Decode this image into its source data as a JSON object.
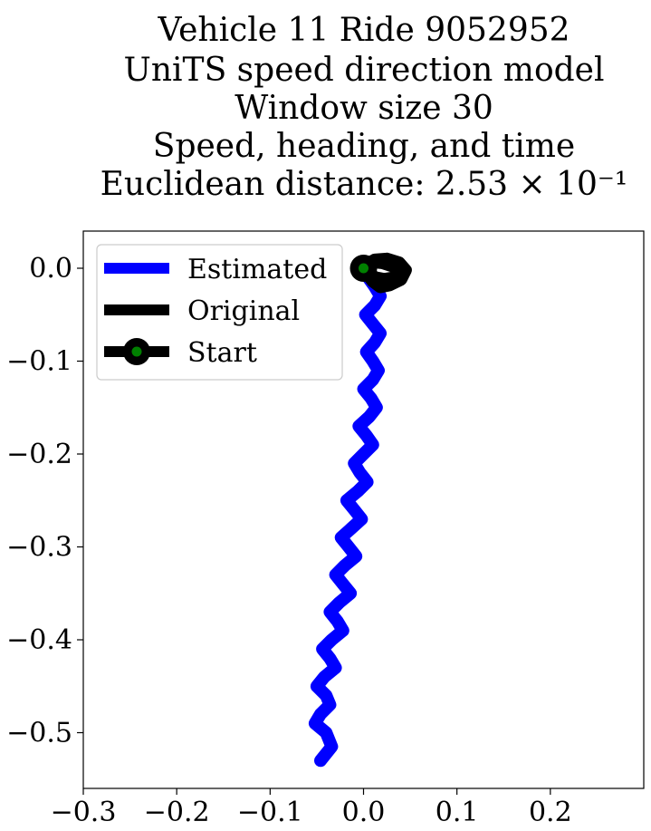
{
  "chart_data": {
    "type": "line",
    "title_lines": [
      "Vehicle 11 Ride 9052952",
      "UniTS speed direction model",
      "Window size 30",
      "Speed, heading, and time",
      "Euclidean distance: 2.53 × 10⁻¹"
    ],
    "xlabel": "",
    "ylabel": "",
    "xlim": [
      -0.3,
      0.3
    ],
    "ylim": [
      -0.56,
      0.04
    ],
    "xticks": [
      -0.3,
      -0.2,
      -0.1,
      0.0,
      0.1,
      0.2
    ],
    "xtick_labels": [
      "−0.3",
      "−0.2",
      "−0.1",
      "0.0",
      "0.1",
      "0.2"
    ],
    "yticks": [
      0.0,
      -0.1,
      -0.2,
      -0.3,
      -0.4,
      -0.5
    ],
    "ytick_labels": [
      "0.0",
      "−0.1",
      "−0.2",
      "−0.3",
      "−0.4",
      "−0.5"
    ],
    "grid": false,
    "legend_position": "upper-left",
    "legend": [
      {
        "label": "Estimated",
        "color": "#0000ff",
        "style": "line"
      },
      {
        "label": "Original",
        "color": "#000000",
        "style": "line"
      },
      {
        "label": "Start",
        "color": "#000000",
        "marker_color": "#008000",
        "style": "line-marker"
      }
    ],
    "series": [
      {
        "name": "Estimated",
        "color": "#0000ff",
        "x": [
          0.0,
          0.005,
          0.012,
          0.018,
          0.012,
          0.002,
          0.01,
          0.018,
          0.012,
          0.003,
          0.01,
          0.016,
          0.01,
          0.0,
          0.008,
          0.014,
          0.006,
          -0.005,
          0.003,
          0.01,
          0.0,
          -0.01,
          -0.004,
          0.004,
          -0.006,
          -0.018,
          -0.01,
          -0.002,
          -0.013,
          -0.024,
          -0.016,
          -0.008,
          -0.02,
          -0.03,
          -0.022,
          -0.014,
          -0.026,
          -0.036,
          -0.028,
          -0.022,
          -0.034,
          -0.044,
          -0.036,
          -0.03,
          -0.042,
          -0.05,
          -0.04,
          -0.036,
          -0.046,
          -0.052,
          -0.04,
          -0.034,
          -0.046
        ],
        "y": [
          0.0,
          -0.01,
          -0.02,
          -0.03,
          -0.04,
          -0.05,
          -0.06,
          -0.07,
          -0.08,
          -0.09,
          -0.1,
          -0.11,
          -0.12,
          -0.13,
          -0.14,
          -0.15,
          -0.16,
          -0.17,
          -0.18,
          -0.19,
          -0.2,
          -0.21,
          -0.22,
          -0.23,
          -0.24,
          -0.25,
          -0.26,
          -0.27,
          -0.28,
          -0.29,
          -0.3,
          -0.31,
          -0.32,
          -0.33,
          -0.34,
          -0.35,
          -0.36,
          -0.37,
          -0.38,
          -0.39,
          -0.4,
          -0.41,
          -0.42,
          -0.43,
          -0.44,
          -0.45,
          -0.46,
          -0.47,
          -0.48,
          -0.49,
          -0.5,
          -0.515,
          -0.53
        ]
      },
      {
        "name": "Original",
        "color": "#000000",
        "x": [
          0.0,
          0.012,
          0.025,
          0.038,
          0.045,
          0.04,
          0.028,
          0.018,
          0.01,
          0.004,
          0.0,
          0.008,
          0.02,
          0.032,
          0.042,
          0.034,
          0.022,
          0.012,
          0.0
        ],
        "y": [
          0.0,
          0.009,
          0.01,
          0.006,
          -0.002,
          -0.012,
          -0.018,
          -0.02,
          -0.014,
          -0.006,
          0.0,
          0.007,
          0.006,
          0.002,
          -0.004,
          -0.01,
          -0.012,
          -0.01,
          0.0
        ]
      }
    ],
    "start": {
      "x": 0.0,
      "y": 0.0,
      "label": "Start",
      "marker_color": "#008000"
    }
  }
}
